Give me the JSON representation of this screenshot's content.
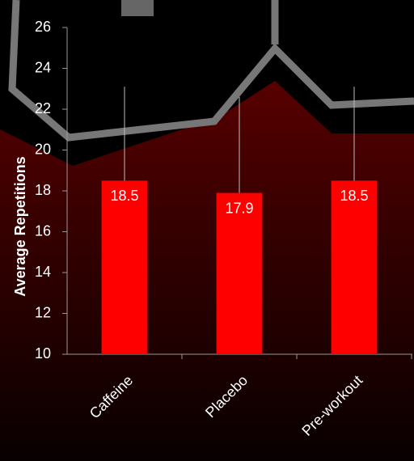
{
  "chart_data": {
    "type": "bar",
    "y_label": "Average Repetitions",
    "categories": [
      "Caffeine",
      "Placebo",
      "Pre-workout"
    ],
    "values": [
      18.5,
      17.9,
      18.5
    ],
    "errors": [
      4.6,
      4.7,
      4.6
    ],
    "color": "#ff0000",
    "ylim": [
      10,
      26
    ],
    "yticks": [
      10,
      12,
      14,
      16,
      18,
      20,
      22,
      24,
      26
    ],
    "grid": false
  }
}
